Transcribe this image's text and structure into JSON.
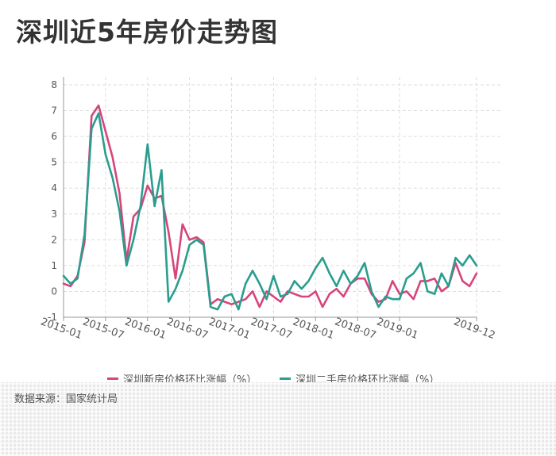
{
  "title": "深圳近5年房价走势图",
  "source": "数据来源：国家统计局",
  "colors": {
    "new_home": "#d6457c",
    "second_hand": "#2a9d8f",
    "axis": "#999999",
    "grid": "#dddddd",
    "text": "#555555"
  },
  "chart_data": {
    "type": "line",
    "ylim": [
      -1,
      8
    ],
    "yticks": [
      -1,
      0,
      1,
      2,
      3,
      4,
      5,
      6,
      7,
      8
    ],
    "x_start": "2015-01",
    "x_end": "2019-12",
    "xtick_labels": [
      "2015-01",
      "2015-07",
      "2016-01",
      "2016-07",
      "2017-01",
      "2017-07",
      "2018-01",
      "2018-07",
      "2019-01",
      "2019-12"
    ],
    "grid": true,
    "legend_position": "bottom",
    "series": [
      {
        "name": "深圳新房价格环比涨幅（%）",
        "values": [
          0.3,
          0.2,
          0.6,
          1.9,
          6.8,
          7.2,
          6.2,
          5.2,
          3.8,
          1.2,
          2.9,
          3.2,
          4.1,
          3.6,
          3.7,
          2.3,
          0.5,
          2.6,
          2.0,
          2.1,
          1.9,
          -0.5,
          -0.3,
          -0.4,
          -0.5,
          -0.4,
          -0.3,
          0.0,
          -0.6,
          0.0,
          -0.2,
          -0.4,
          0.0,
          -0.1,
          -0.2,
          -0.2,
          0.0,
          -0.6,
          -0.1,
          0.1,
          -0.2,
          0.3,
          0.5,
          0.5,
          -0.1,
          -0.4,
          -0.3,
          0.4,
          -0.1,
          0.0,
          -0.3,
          0.4,
          0.4,
          0.5,
          0.0,
          0.2,
          1.1,
          0.4,
          0.2,
          0.7
        ]
      },
      {
        "name": "深圳二手房价格环比涨幅（%）",
        "values": [
          0.6,
          0.3,
          0.5,
          2.2,
          6.3,
          6.9,
          5.3,
          4.4,
          3.1,
          1.0,
          2.0,
          3.3,
          5.7,
          3.3,
          4.7,
          -0.4,
          0.1,
          0.8,
          1.8,
          2.0,
          1.8,
          -0.6,
          -0.7,
          -0.2,
          -0.1,
          -0.7,
          0.3,
          0.8,
          0.3,
          -0.3,
          0.6,
          -0.2,
          -0.1,
          0.4,
          0.1,
          0.4,
          0.9,
          1.3,
          0.7,
          0.2,
          0.8,
          0.3,
          0.6,
          1.1,
          0.0,
          -0.6,
          -0.2,
          -0.3,
          -0.3,
          0.5,
          0.7,
          1.1,
          0.0,
          -0.1,
          0.7,
          0.2,
          1.3,
          1.0,
          1.4,
          1.0
        ]
      }
    ]
  }
}
